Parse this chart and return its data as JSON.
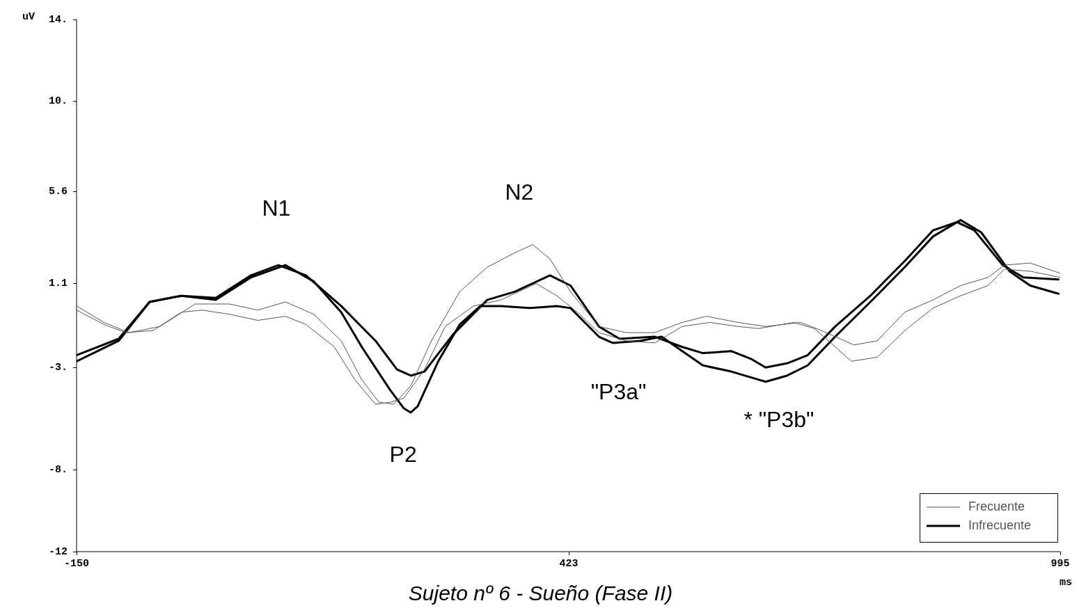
{
  "chart_data": {
    "type": "line",
    "title": "Sujeto nº 6 - Sueño (Fase II)",
    "xlabel": "ms",
    "ylabel": "uV",
    "xlim": [
      -150,
      995
    ],
    "xticks": [
      -150,
      423,
      995
    ],
    "ylim": [
      -12,
      14
    ],
    "yticks": [
      {
        "value": -12,
        "label": "-12"
      },
      {
        "value": -8,
        "label": "-8."
      },
      {
        "value": -3,
        "label": "-3."
      },
      1.1,
      5.6,
      {
        "value": 10,
        "label": "10."
      },
      {
        "value": 14,
        "label": "14."
      }
    ],
    "grid": false,
    "legend": "bottom right",
    "marker": "none",
    "line_style": "solid",
    "series": [
      {
        "name": "Frecuente",
        "color": "#555555",
        "x": [
          -150,
          -118,
          -89,
          -53,
          -12,
          28,
          61,
          93,
          126,
          158,
          182,
          202,
          219,
          239,
          263,
          296,
          328,
          360,
          381,
          401,
          425,
          458,
          490,
          523,
          555,
          583,
          620,
          652,
          693,
          717,
          755,
          782,
          814,
          847,
          879,
          911,
          930,
          960,
          995
        ],
        "values": [
          0.0,
          -0.8,
          -1.3,
          -1.0,
          0.1,
          0.1,
          -0.2,
          0.2,
          -0.4,
          -1.7,
          -3.6,
          -4.7,
          -4.8,
          -3.9,
          -1.7,
          0.7,
          1.9,
          2.6,
          3.0,
          2.3,
          0.7,
          -1.0,
          -1.3,
          -1.3,
          -0.8,
          -0.5,
          -0.8,
          -1.0,
          -0.8,
          -1.2,
          -1.9,
          -1.7,
          -0.3,
          0.3,
          1.0,
          1.4,
          2.0,
          2.1,
          1.6
        ]
      },
      {
        "color": "#555555",
        "x": [
          -150,
          -118,
          -93,
          -61,
          -28,
          -4,
          28,
          61,
          93,
          117,
          150,
          174,
          198,
          215,
          231,
          255,
          279,
          312,
          344,
          385,
          409,
          433,
          458,
          490,
          523,
          555,
          587,
          620,
          644,
          685,
          709,
          752,
          782,
          814,
          847,
          879,
          911,
          930,
          960,
          995
        ],
        "values": [
          -0.2,
          -0.9,
          -1.3,
          -1.2,
          -0.3,
          -0.2,
          -0.4,
          -0.7,
          -0.5,
          -0.9,
          -2.0,
          -3.6,
          -4.8,
          -4.7,
          -4.5,
          -3.1,
          -1.0,
          0.0,
          0.3,
          1.1,
          0.5,
          -0.3,
          -1.3,
          -1.7,
          -1.8,
          -1.0,
          -0.8,
          -1.0,
          -1.1,
          -0.8,
          -1.1,
          -2.7,
          -2.5,
          -1.2,
          -0.1,
          0.5,
          1.0,
          1.8,
          1.7,
          1.4
        ]
      },
      {
        "name": "Infrecuente",
        "color": "#000000",
        "x": [
          -150,
          -101,
          -65,
          -28,
          12,
          53,
          85,
          117,
          158,
          198,
          223,
          239,
          255,
          288,
          328,
          360,
          401,
          425,
          458,
          482,
          523,
          555,
          579,
          612,
          636,
          652,
          677,
          701,
          733,
          774,
          814,
          847,
          875,
          895,
          928,
          952,
          993
        ],
        "values": [
          -2.4,
          -1.6,
          0.2,
          0.5,
          0.4,
          1.5,
          2.0,
          1.5,
          0.0,
          -1.7,
          -3.1,
          -3.4,
          -3.2,
          -1.4,
          0.3,
          0.7,
          1.5,
          1.0,
          -1.0,
          -1.6,
          -1.5,
          -2.0,
          -2.3,
          -2.2,
          -2.6,
          -3.0,
          -2.8,
          -2.4,
          -1.0,
          0.5,
          2.2,
          3.7,
          4.1,
          3.7,
          2.0,
          1.4,
          1.3
        ]
      },
      {
        "color": "#000000",
        "x": [
          -150,
          -101,
          -65,
          -28,
          12,
          53,
          93,
          126,
          158,
          182,
          215,
          231,
          239,
          247,
          271,
          296,
          320,
          344,
          377,
          409,
          425,
          458,
          474,
          506,
          531,
          555,
          579,
          612,
          636,
          652,
          677,
          701,
          733,
          774,
          814,
          847,
          879,
          903,
          936,
          960,
          993
        ],
        "values": [
          -2.7,
          -1.7,
          0.2,
          0.5,
          0.3,
          1.4,
          2.0,
          1.2,
          -0.3,
          -2.0,
          -4.1,
          -5.0,
          -5.2,
          -4.9,
          -2.7,
          -0.9,
          0.0,
          0.0,
          -0.1,
          0.0,
          -0.1,
          -1.5,
          -1.8,
          -1.7,
          -1.5,
          -2.2,
          -2.9,
          -3.2,
          -3.5,
          -3.7,
          -3.4,
          -2.9,
          -1.5,
          0.2,
          1.9,
          3.4,
          4.2,
          3.6,
          1.7,
          1.0,
          0.6
        ]
      }
    ],
    "annotations": [
      "N1",
      "N2",
      "P2",
      "\"P3a\"",
      "* \"P3b\""
    ]
  }
}
